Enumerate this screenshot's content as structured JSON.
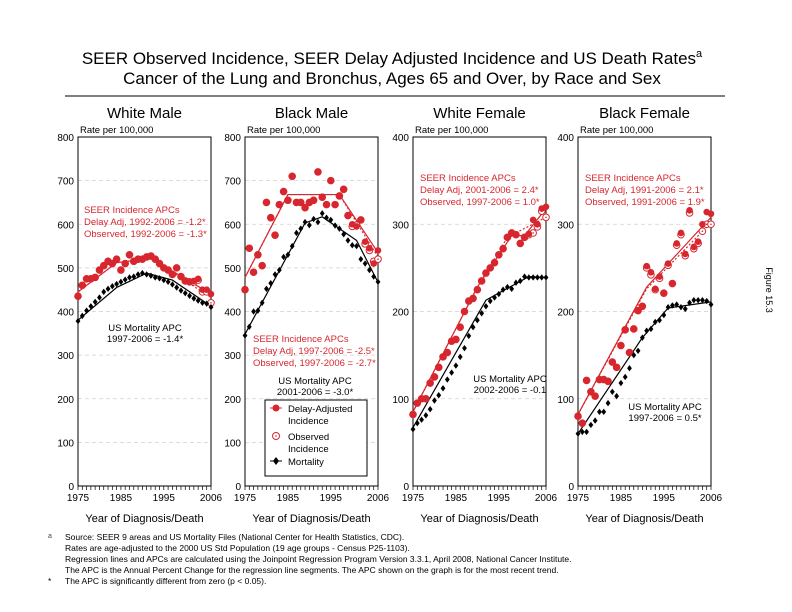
{
  "title": {
    "line1": "SEER Observed Incidence, SEER Delay Adjusted Incidence and US Death Rates",
    "sup": "a",
    "line2": "Cancer of the Lung and Bronchus, Ages 65 and Over, by Race and Sex"
  },
  "figure_label": "Figure 15.3",
  "colors": {
    "incidence": "#d7262e",
    "mortality": "#000000",
    "grid": "#d0d0d0"
  },
  "legend": {
    "placement": "inside Black Male panel, bottom",
    "delay": [
      "Delay-Adjusted",
      "Incidence"
    ],
    "observed": [
      "Observed",
      "Incidence"
    ],
    "mortality": "Mortality"
  },
  "footnotes": {
    "a_mark": "a",
    "star_mark": "*",
    "lines": [
      "Source: SEER 9 areas and US Mortality Files (National Center for Health Statistics, CDC).",
      "Rates are age-adjusted to the 2000 US Std Population (19 age groups - Census P25-1103).",
      "Regression lines and APCs are calculated using the Joinpoint Regression Program Version 3.3.1, April 2008, National Cancer Institute.",
      "The APC is the Annual Percent Change for the regression line segments. The APC shown on the graph is for the most recent trend."
    ],
    "star": "The APC is significantly different from zero (p < 0.05)."
  },
  "chart_data": [
    {
      "type": "line",
      "title": "White Male",
      "ylabel": "Rate per 100,000",
      "xlabel": "Year of Diagnosis/Death",
      "ylim": [
        0,
        800
      ],
      "yticks": [
        "0",
        "100",
        "200",
        "300",
        "400",
        "500",
        "600",
        "700",
        "800"
      ],
      "xlim": [
        1975,
        2006
      ],
      "xticks": [
        "1975",
        "1985",
        "1995",
        "2006"
      ],
      "grid": true,
      "start_year": 1975,
      "delay_adjusted": [
        435,
        460,
        475,
        475,
        478,
        495,
        505,
        515,
        510,
        520,
        495,
        510,
        530,
        515,
        520,
        520,
        525,
        527,
        520,
        510,
        500,
        495,
        485,
        500,
        480,
        470,
        468,
        470,
        475,
        450,
        450,
        440
      ],
      "observed": [
        435,
        460,
        475,
        475,
        478,
        495,
        505,
        515,
        510,
        520,
        495,
        510,
        530,
        515,
        520,
        520,
        525,
        527,
        520,
        510,
        500,
        495,
        485,
        500,
        480,
        470,
        468,
        468,
        472,
        445,
        445,
        420
      ],
      "mortality": [
        378,
        390,
        402,
        412,
        422,
        432,
        445,
        452,
        458,
        463,
        468,
        473,
        478,
        480,
        485,
        488,
        485,
        482,
        478,
        476,
        472,
        468,
        462,
        455,
        448,
        442,
        436,
        430,
        425,
        420,
        418,
        410
      ],
      "trend_delay": [
        [
          1975,
          445
        ],
        [
          1984,
          512
        ],
        [
          1992,
          522
        ],
        [
          2006,
          440
        ]
      ],
      "trend_observed": [
        [
          1975,
          445
        ],
        [
          1984,
          512
        ],
        [
          1992,
          522
        ],
        [
          2006,
          432
        ]
      ],
      "trend_mortality": [
        [
          1975,
          380
        ],
        [
          1984,
          455
        ],
        [
          1991,
          488
        ],
        [
          1997,
          472
        ],
        [
          2006,
          412
        ]
      ],
      "seer_apc": [
        "SEER Incidence APCs",
        "Delay Adj, 1992-2006 = -1.2*",
        "Observed, 1992-2006 = -1.3*"
      ],
      "mort_apc": [
        "US Mortality APC",
        "1997-2006 = -1.4*"
      ]
    },
    {
      "type": "line",
      "title": "Black Male",
      "ylabel": "Rate per 100,000",
      "xlabel": "Year of Diagnosis/Death",
      "ylim": [
        0,
        800
      ],
      "yticks": [
        "0",
        "100",
        "200",
        "300",
        "400",
        "500",
        "600",
        "700",
        "800"
      ],
      "xlim": [
        1975,
        2006
      ],
      "xticks": [
        "1975",
        "1985",
        "1995",
        "2006"
      ],
      "grid": true,
      "start_year": 1975,
      "delay_adjusted": [
        450,
        545,
        490,
        530,
        505,
        650,
        615,
        575,
        645,
        675,
        655,
        710,
        650,
        650,
        638,
        650,
        655,
        720,
        662,
        645,
        700,
        645,
        665,
        680,
        620,
        600,
        595,
        610,
        560,
        545,
        510,
        540
      ],
      "observed": [
        450,
        545,
        490,
        530,
        505,
        650,
        615,
        575,
        645,
        675,
        655,
        710,
        650,
        650,
        638,
        650,
        655,
        720,
        662,
        645,
        700,
        645,
        665,
        680,
        620,
        595,
        598,
        610,
        555,
        540,
        515,
        520
      ],
      "mortality": [
        345,
        365,
        400,
        402,
        420,
        452,
        465,
        485,
        495,
        525,
        530,
        550,
        580,
        590,
        605,
        598,
        612,
        605,
        625,
        615,
        610,
        597,
        590,
        577,
        563,
        552,
        550,
        520,
        510,
        495,
        480,
        468
      ],
      "trend_delay": [
        [
          1975,
          478
        ],
        [
          1985,
          668
        ],
        [
          1997,
          668
        ],
        [
          2006,
          535
        ]
      ],
      "trend_observed": [
        [
          1975,
          478
        ],
        [
          1985,
          668
        ],
        [
          1997,
          668
        ],
        [
          2006,
          525
        ]
      ],
      "trend_mortality": [
        [
          1975,
          348
        ],
        [
          1989,
          603
        ],
        [
          1993,
          617
        ],
        [
          2001,
          563
        ],
        [
          2006,
          467
        ]
      ],
      "seer_apc": [
        "SEER Incidence APCs",
        "Delay Adj, 1997-2006 = -2.5*",
        "Observed, 1997-2006 = -2.7*"
      ],
      "mort_apc": [
        "US Mortality APC",
        "2001-2006 = -3.0*"
      ]
    },
    {
      "type": "line",
      "title": "White Female",
      "ylabel": "Rate per 100,000",
      "xlabel": "Year of Diagnosis/Death",
      "ylim": [
        0,
        400
      ],
      "yticks": [
        "0",
        "100",
        "200",
        "300",
        "400"
      ],
      "xlim": [
        1975,
        2006
      ],
      "xticks": [
        "1975",
        "1985",
        "1995",
        "2006"
      ],
      "grid": true,
      "start_year": 1975,
      "delay_adjusted": [
        82,
        95,
        100,
        100,
        118,
        125,
        136,
        148,
        153,
        166,
        168,
        182,
        200,
        212,
        215,
        225,
        235,
        244,
        250,
        256,
        265,
        272,
        285,
        290,
        288,
        278,
        285,
        289,
        305,
        300,
        318,
        320
      ],
      "observed": [
        82,
        95,
        100,
        100,
        118,
        125,
        136,
        148,
        153,
        166,
        168,
        182,
        200,
        212,
        215,
        225,
        235,
        244,
        250,
        256,
        265,
        272,
        285,
        290,
        288,
        278,
        285,
        288,
        290,
        297,
        315,
        308
      ],
      "mortality": [
        65,
        72,
        76,
        81,
        88,
        98,
        104,
        112,
        122,
        130,
        138,
        148,
        158,
        172,
        182,
        190,
        198,
        206,
        212,
        216,
        220,
        225,
        228,
        226,
        233,
        235,
        240,
        239,
        239,
        239,
        239,
        239
      ],
      "trend_delay": [
        [
          1975,
          85
        ],
        [
          1990,
          228
        ],
        [
          1998,
          287
        ],
        [
          2001,
          287
        ],
        [
          2006,
          318
        ]
      ],
      "trend_observed": [
        [
          1975,
          85
        ],
        [
          1990,
          228
        ],
        [
          1997,
          285
        ],
        [
          2006,
          308
        ]
      ],
      "trend_mortality": [
        [
          1975,
          67
        ],
        [
          1992,
          213
        ],
        [
          2002,
          240
        ],
        [
          2006,
          239
        ]
      ],
      "seer_apc": [
        "SEER Incidence APCs",
        "Delay Adj, 2001-2006 = 2.4*",
        "Observed, 1997-2006 = 1.0*"
      ],
      "mort_apc": [
        "US Mortality APC",
        "2002-2006 = -0.1"
      ]
    },
    {
      "type": "line",
      "title": "Black Female",
      "ylabel": "Rate per 100,000",
      "xlabel": "Year of Diagnosis/Death",
      "ylim": [
        0,
        400
      ],
      "yticks": [
        "0",
        "100",
        "200",
        "300",
        "400"
      ],
      "xlim": [
        1975,
        2006
      ],
      "xticks": [
        "1975",
        "1985",
        "1995",
        "2006"
      ],
      "grid": true,
      "start_year": 1975,
      "delay_adjusted": [
        80,
        72,
        121,
        108,
        103,
        122,
        122,
        120,
        142,
        136,
        161,
        179,
        153,
        180,
        201,
        206,
        252,
        245,
        226,
        240,
        221,
        255,
        232,
        278,
        290,
        266,
        316,
        274,
        280,
        300,
        314,
        312
      ],
      "observed": [
        80,
        72,
        121,
        108,
        103,
        122,
        122,
        120,
        142,
        136,
        161,
        179,
        153,
        180,
        201,
        206,
        250,
        242,
        225,
        238,
        221,
        253,
        232,
        276,
        288,
        264,
        313,
        272,
        278,
        292,
        300,
        300
      ],
      "mortality": [
        60,
        62,
        62,
        70,
        75,
        85,
        85,
        95,
        108,
        103,
        118,
        125,
        135,
        150,
        155,
        170,
        178,
        180,
        188,
        190,
        196,
        205,
        207,
        208,
        205,
        203,
        210,
        213,
        213,
        213,
        212,
        208
      ],
      "trend_delay": [
        [
          1975,
          82
        ],
        [
          1991,
          228
        ],
        [
          2006,
          308
        ]
      ],
      "trend_observed": [
        [
          1975,
          82
        ],
        [
          1991,
          226
        ],
        [
          2006,
          302
        ]
      ],
      "trend_mortality": [
        [
          1975,
          60
        ],
        [
          1990,
          170
        ],
        [
          1996,
          204
        ],
        [
          2006,
          211
        ]
      ],
      "seer_apc": [
        "SEER Incidence APCs",
        "Delay Adj, 1991-2006 = 2.1*",
        "Observed, 1991-2006 = 1.9*"
      ],
      "mort_apc": [
        "US Mortality APC",
        "1997-2006 = 0.5*"
      ]
    }
  ]
}
